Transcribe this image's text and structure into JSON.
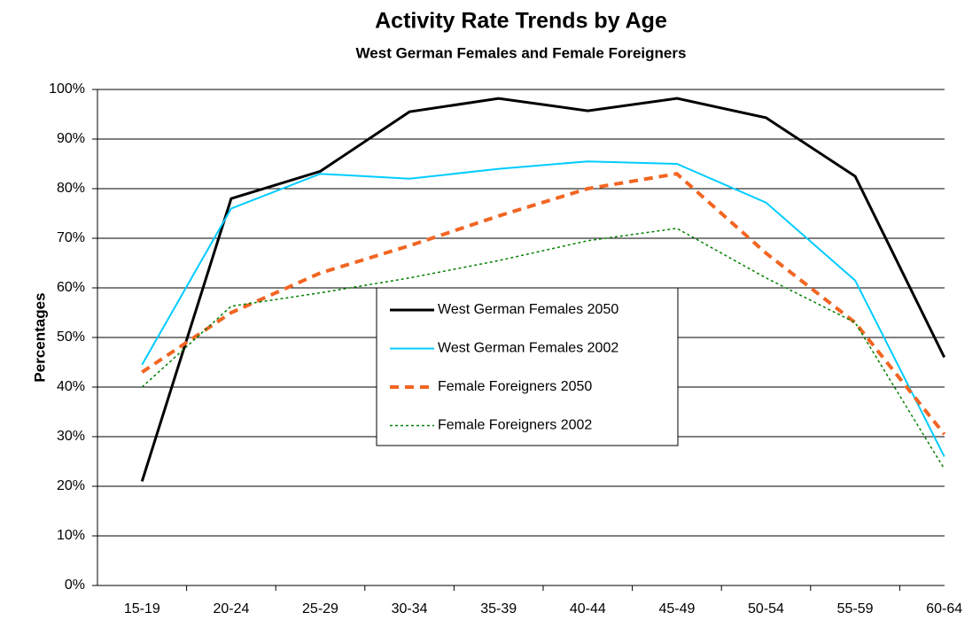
{
  "chart_data": {
    "type": "line",
    "title": "Activity Rate Trends by Age",
    "subtitle": "West German Females and Female Foreigners",
    "y_label": "Percentages",
    "categories": [
      "15-19",
      "20-24",
      "25-29",
      "30-34",
      "35-39",
      "40-44",
      "45-49",
      "50-54",
      "55-59",
      "60-64"
    ],
    "series": [
      {
        "name": "West German Females 2050",
        "color": "#000000",
        "style": "solid",
        "width": 3,
        "values": [
          21,
          78,
          83.5,
          95.5,
          98.2,
          95.7,
          98.2,
          94.3,
          82.5,
          46
        ]
      },
      {
        "name": "West German Females 2002",
        "color": "#00ccff",
        "style": "solid",
        "width": 2,
        "values": [
          44.5,
          76,
          83,
          82,
          84,
          85.5,
          85,
          77.2,
          61.5,
          26
        ]
      },
      {
        "name": "Female Foreigners 2050",
        "color": "#f26522",
        "style": "dashed",
        "width": 4,
        "values": [
          43,
          55,
          63,
          68.5,
          74.5,
          80,
          83,
          67,
          53,
          30.5
        ]
      },
      {
        "name": "Female Foreigners 2002",
        "color": "#008000",
        "style": "dotted",
        "width": 1.5,
        "values": [
          40,
          56.3,
          59,
          62,
          65.5,
          69.5,
          72,
          62,
          53,
          23.5
        ]
      }
    ],
    "ylim": [
      0,
      100
    ],
    "yticks": [
      {
        "value": 0,
        "label": "0%"
      },
      {
        "value": 10,
        "label": "10%"
      },
      {
        "value": 20,
        "label": "20%"
      },
      {
        "value": 30,
        "label": "30%"
      },
      {
        "value": 40,
        "label": "40%"
      },
      {
        "value": 50,
        "label": "50%"
      },
      {
        "value": 60,
        "label": "60%"
      },
      {
        "value": 70,
        "label": "70%"
      },
      {
        "value": 80,
        "label": "80%"
      },
      {
        "value": 90,
        "label": "90%"
      },
      {
        "value": 100,
        "label": "100%"
      }
    ],
    "grid": true
  }
}
